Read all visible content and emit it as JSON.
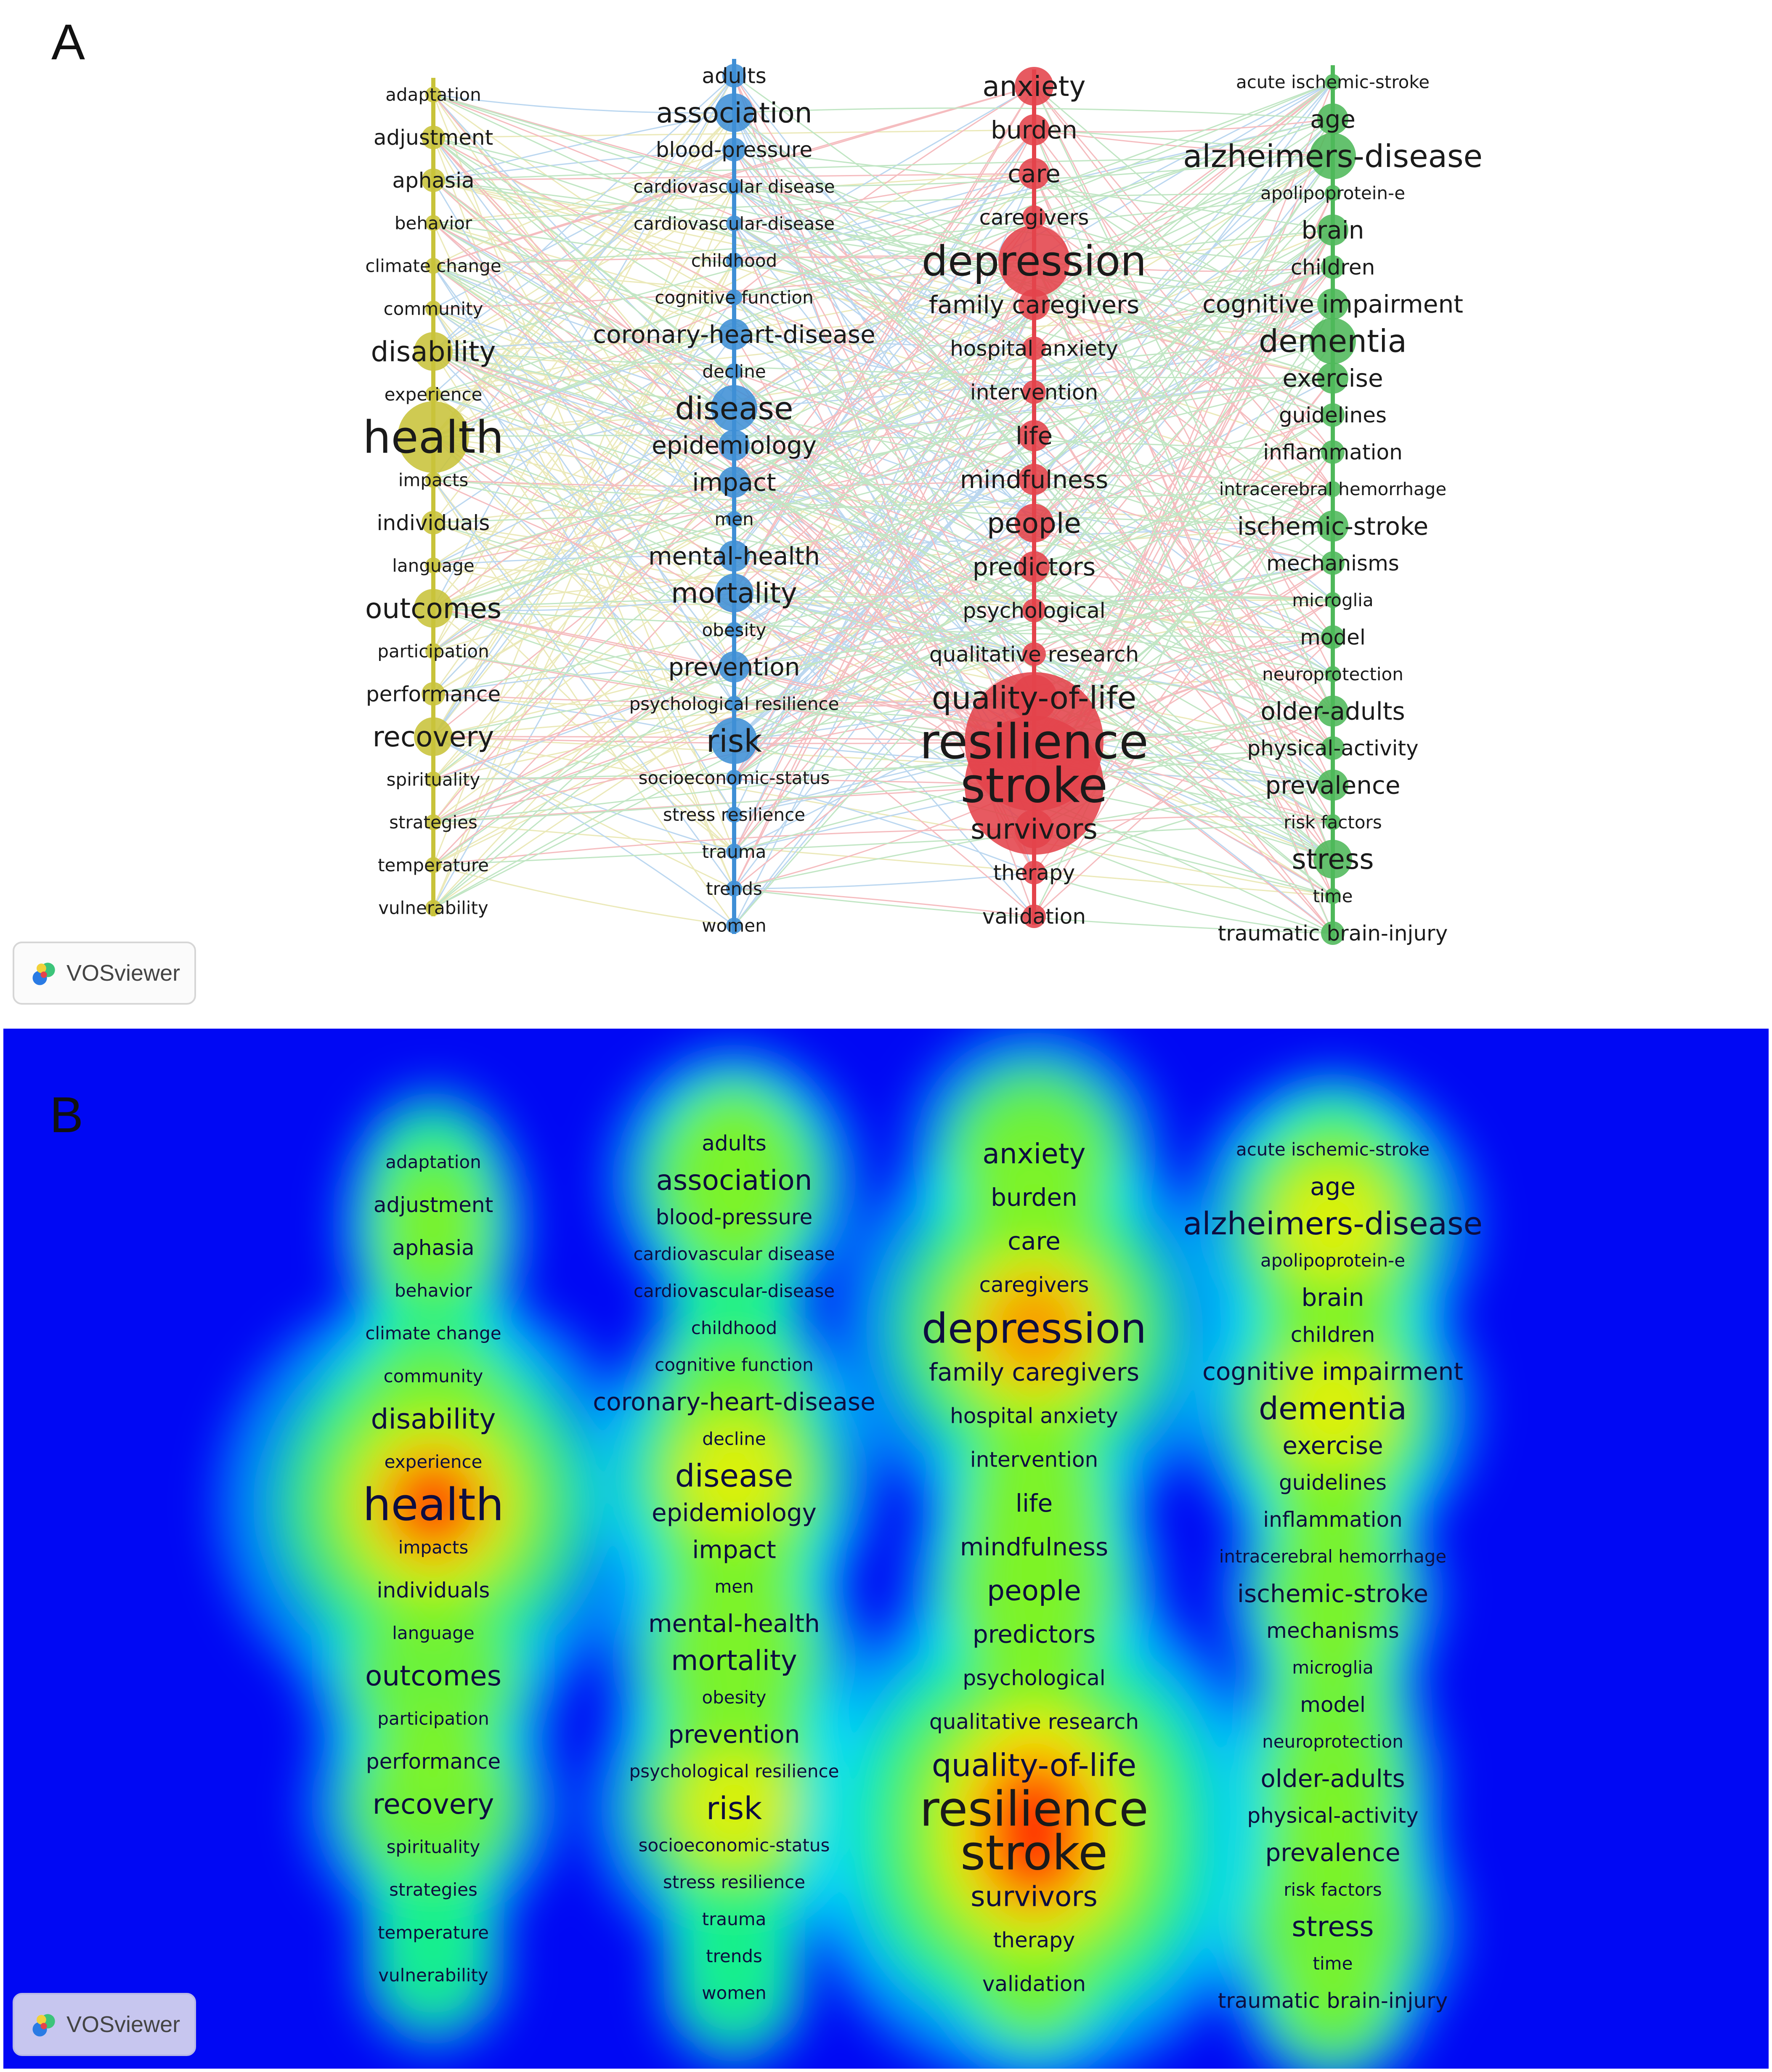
{
  "panel_a": {
    "letter": "A"
  },
  "panel_b": {
    "letter": "B"
  },
  "branding": {
    "vos_label": "VOSviewer",
    "logo_icon": "vosviewer-logo-icon"
  },
  "colors": {
    "cluster_yellow": "#c8c33a",
    "cluster_blue": "#3f8fd6",
    "cluster_red": "#e4434b",
    "cluster_green": "#4fb85a",
    "density_background": "#0008f4"
  },
  "clusters": [
    {
      "id": "yellow",
      "color": "#c8c33a",
      "terms": [
        {
          "label": "adaptation",
          "weight": 1
        },
        {
          "label": "adjustment",
          "weight": 2
        },
        {
          "label": "aphasia",
          "weight": 2
        },
        {
          "label": "behavior",
          "weight": 1
        },
        {
          "label": "climate change",
          "weight": 1
        },
        {
          "label": "community",
          "weight": 1
        },
        {
          "label": "disability",
          "weight": 4
        },
        {
          "label": "experience",
          "weight": 1
        },
        {
          "label": "health",
          "weight": 9
        },
        {
          "label": "impacts",
          "weight": 1
        },
        {
          "label": "individuals",
          "weight": 2
        },
        {
          "label": "language",
          "weight": 1
        },
        {
          "label": "outcomes",
          "weight": 4
        },
        {
          "label": "participation",
          "weight": 1
        },
        {
          "label": "performance",
          "weight": 2
        },
        {
          "label": "recovery",
          "weight": 4
        },
        {
          "label": "spirituality",
          "weight": 1
        },
        {
          "label": "strategies",
          "weight": 1
        },
        {
          "label": "temperature",
          "weight": 1
        },
        {
          "label": "vulnerability",
          "weight": 1
        }
      ]
    },
    {
      "id": "blue",
      "color": "#3f8fd6",
      "terms": [
        {
          "label": "adults",
          "weight": 2
        },
        {
          "label": "association",
          "weight": 4
        },
        {
          "label": "blood-pressure",
          "weight": 2
        },
        {
          "label": "cardiovascular disease",
          "weight": 1
        },
        {
          "label": "cardiovascular-disease",
          "weight": 1
        },
        {
          "label": "childhood",
          "weight": 1
        },
        {
          "label": "cognitive function",
          "weight": 1
        },
        {
          "label": "coronary-heart-disease",
          "weight": 3
        },
        {
          "label": "decline",
          "weight": 1
        },
        {
          "label": "disease",
          "weight": 5
        },
        {
          "label": "epidemiology",
          "weight": 3
        },
        {
          "label": "impact",
          "weight": 3
        },
        {
          "label": "men",
          "weight": 1
        },
        {
          "label": "mental-health",
          "weight": 3
        },
        {
          "label": "mortality",
          "weight": 4
        },
        {
          "label": "obesity",
          "weight": 1
        },
        {
          "label": "prevention",
          "weight": 3
        },
        {
          "label": "psychological resilience",
          "weight": 1
        },
        {
          "label": "risk",
          "weight": 5
        },
        {
          "label": "socioeconomic-status",
          "weight": 1
        },
        {
          "label": "stress resilience",
          "weight": 1
        },
        {
          "label": "trauma",
          "weight": 1
        },
        {
          "label": "trends",
          "weight": 1
        },
        {
          "label": "women",
          "weight": 1
        }
      ]
    },
    {
      "id": "red",
      "color": "#e4434b",
      "terms": [
        {
          "label": "anxiety",
          "weight": 4
        },
        {
          "label": "burden",
          "weight": 3
        },
        {
          "label": "care",
          "weight": 3
        },
        {
          "label": "caregivers",
          "weight": 2
        },
        {
          "label": "depression",
          "weight": 8
        },
        {
          "label": "family caregivers",
          "weight": 3
        },
        {
          "label": "hospital anxiety",
          "weight": 2
        },
        {
          "label": "intervention",
          "weight": 2
        },
        {
          "label": "life",
          "weight": 3
        },
        {
          "label": "mindfulness",
          "weight": 3
        },
        {
          "label": "people",
          "weight": 4
        },
        {
          "label": "predictors",
          "weight": 3
        },
        {
          "label": "psychological",
          "weight": 2
        },
        {
          "label": "qualitative research",
          "weight": 2
        },
        {
          "label": "quality-of-life",
          "weight": 5
        },
        {
          "label": "resilience",
          "weight": 10
        },
        {
          "label": "stroke",
          "weight": 10
        },
        {
          "label": "survivors",
          "weight": 4
        },
        {
          "label": "therapy",
          "weight": 2
        },
        {
          "label": "validation",
          "weight": 2
        }
      ]
    },
    {
      "id": "green",
      "color": "#4fb85a",
      "terms": [
        {
          "label": "acute ischemic-stroke",
          "weight": 1
        },
        {
          "label": "age",
          "weight": 3
        },
        {
          "label": "alzheimers-disease",
          "weight": 5
        },
        {
          "label": "apolipoprotein-e",
          "weight": 1
        },
        {
          "label": "brain",
          "weight": 3
        },
        {
          "label": "children",
          "weight": 2
        },
        {
          "label": "cognitive impairment",
          "weight": 3
        },
        {
          "label": "dementia",
          "weight": 5
        },
        {
          "label": "exercise",
          "weight": 3
        },
        {
          "label": "guidelines",
          "weight": 2
        },
        {
          "label": "inflammation",
          "weight": 2
        },
        {
          "label": "intracerebral hemorrhage",
          "weight": 1
        },
        {
          "label": "ischemic-stroke",
          "weight": 3
        },
        {
          "label": "mechanisms",
          "weight": 2
        },
        {
          "label": "microglia",
          "weight": 1
        },
        {
          "label": "model",
          "weight": 2
        },
        {
          "label": "neuroprotection",
          "weight": 1
        },
        {
          "label": "older-adults",
          "weight": 3
        },
        {
          "label": "physical-activity",
          "weight": 2
        },
        {
          "label": "prevalence",
          "weight": 3
        },
        {
          "label": "risk factors",
          "weight": 1
        },
        {
          "label": "stress",
          "weight": 4
        },
        {
          "label": "time",
          "weight": 1
        },
        {
          "label": "traumatic brain-injury",
          "weight": 2
        }
      ]
    }
  ]
}
